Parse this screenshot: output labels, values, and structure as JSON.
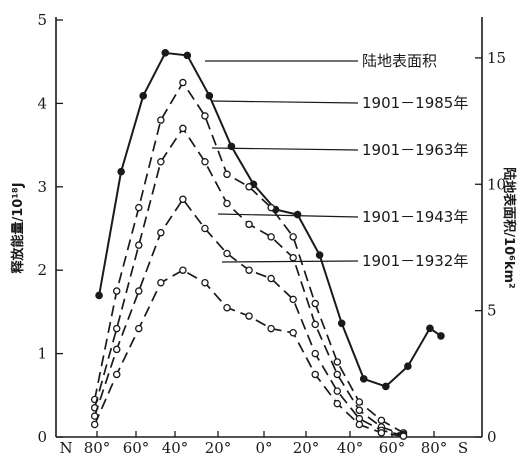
{
  "chart_data": {
    "type": "line",
    "x_ticks": [
      "N",
      "80°",
      "60°",
      "40°",
      "20°",
      "0°",
      "20°",
      "40°",
      "60°",
      "80°",
      "S"
    ],
    "left_axis": {
      "label": "释放能量/10¹⁸J",
      "ylim": [
        0,
        5
      ],
      "ticks": [
        "0",
        "1",
        "2",
        "3",
        "4",
        "5"
      ]
    },
    "right_axis": {
      "label": "陆地表面积/10⁶km²",
      "ylim": [
        0,
        16.5
      ],
      "ticks": [
        "0",
        "5",
        "10",
        "15"
      ]
    },
    "series": [
      {
        "name": "陆地表面积",
        "axis": "right",
        "style": "solid",
        "marker": "filled",
        "x": [
          75,
          65,
          55,
          45,
          35,
          25,
          15,
          5,
          -5,
          -15,
          -25,
          -35,
          -45,
          -55,
          -65,
          -75,
          -80
        ],
        "y": [
          5.6,
          10.5,
          13.5,
          15.2,
          15.1,
          13.5,
          11.5,
          10.0,
          9.0,
          8.8,
          7.2,
          4.5,
          2.3,
          2.0,
          2.8,
          4.3,
          4.0
        ]
      },
      {
        "name": "1901－1985年",
        "axis": "left",
        "style": "dash",
        "marker": "open",
        "x": [
          77,
          67,
          57,
          47,
          37,
          27,
          17,
          7,
          -3,
          -13,
          -23,
          -33,
          -43,
          -53,
          -63
        ],
        "y": [
          0.45,
          1.75,
          2.75,
          3.8,
          4.25,
          3.85,
          3.15,
          3.0,
          2.75,
          2.4,
          1.6,
          0.9,
          0.42,
          0.2,
          0.05
        ]
      },
      {
        "name": "1901－1963年",
        "axis": "left",
        "style": "dash",
        "marker": "open",
        "x": [
          77,
          67,
          57,
          47,
          37,
          27,
          17,
          7,
          -3,
          -13,
          -23,
          -33,
          -43,
          -53,
          -63
        ],
        "y": [
          0.35,
          1.3,
          2.3,
          3.3,
          3.7,
          3.3,
          2.8,
          2.55,
          2.4,
          2.15,
          1.35,
          0.75,
          0.32,
          0.12,
          0.03
        ]
      },
      {
        "name": "1901－1943年",
        "axis": "left",
        "style": "dash",
        "marker": "open",
        "x": [
          77,
          67,
          57,
          47,
          37,
          27,
          17,
          7,
          -3,
          -13,
          -23,
          -33,
          -43,
          -53,
          -63
        ],
        "y": [
          0.25,
          1.05,
          1.75,
          2.45,
          2.85,
          2.5,
          2.2,
          2.0,
          1.9,
          1.65,
          1.0,
          0.55,
          0.22,
          0.08,
          0.02
        ]
      },
      {
        "name": "1901－1932年",
        "axis": "left",
        "style": "dash",
        "marker": "open",
        "x": [
          77,
          67,
          57,
          47,
          37,
          27,
          17,
          7,
          -3,
          -13,
          -23,
          -33,
          -43,
          -53,
          -63
        ],
        "y": [
          0.15,
          0.75,
          1.3,
          1.85,
          2.0,
          1.85,
          1.55,
          1.45,
          1.3,
          1.25,
          0.75,
          0.4,
          0.15,
          0.05,
          0.01
        ]
      }
    ]
  }
}
